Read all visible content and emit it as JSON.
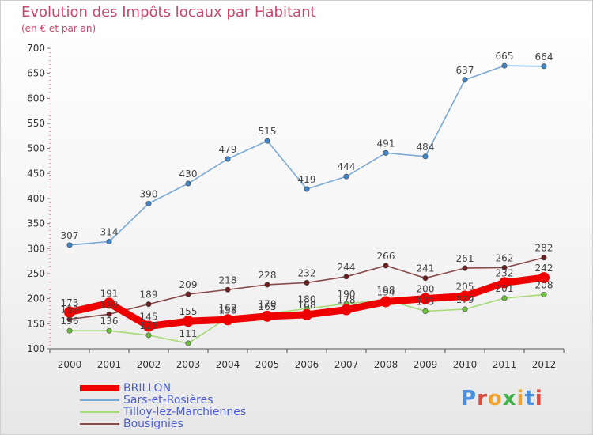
{
  "title": "Evolution des Impôts locaux par Habitant",
  "subtitle": "(en € et par an)",
  "logo": {
    "text": "Proxiti",
    "colors": [
      "#4a8fe0",
      "#e04a3f",
      "#f2a22c",
      "#3fb04a",
      "#f2a22c",
      "#4a8fe0",
      "#e04a3f"
    ]
  },
  "chart_data": {
    "type": "line",
    "title": "Evolution des Impôts locaux par Habitant",
    "subtitle": "(en € et par an)",
    "xlabel": "",
    "ylabel": "",
    "ylim": [
      100,
      700
    ],
    "yticks": [
      100,
      150,
      200,
      250,
      300,
      350,
      400,
      450,
      500,
      550,
      600,
      650,
      700
    ],
    "x": [
      "2000",
      "2001",
      "2002",
      "2003",
      "2004",
      "2005",
      "2006",
      "2007",
      "2008",
      "2009",
      "2010",
      "2011",
      "2012"
    ],
    "grid": false,
    "legend_position": "bottom-left",
    "series": [
      {
        "name": "BRILLON",
        "color": "#ee0000",
        "emphasis": true,
        "values": [
          173,
          191,
          145,
          155,
          158,
          165,
          168,
          178,
          194,
          200,
          205,
          232,
          242
        ]
      },
      {
        "name": "Sars-et-Rosières",
        "color": "#7aaad6",
        "marker": "#3f86c8",
        "values": [
          307,
          314,
          390,
          430,
          479,
          515,
          419,
          444,
          491,
          484,
          637,
          665,
          664
        ]
      },
      {
        "name": "Tilloy-lez-Marchiennes",
        "color": "#a6da74",
        "marker": "#6bc23a",
        "values": [
          136,
          136,
          127,
          111,
          162,
          170,
          180,
          190,
          198,
          175,
          179,
          201,
          208
        ]
      },
      {
        "name": "Bousignies",
        "color": "#8a4a4a",
        "marker": "#6b1f1f",
        "values": [
          159,
          169,
          189,
          209,
          218,
          228,
          232,
          244,
          266,
          241,
          261,
          262,
          282
        ]
      }
    ]
  }
}
